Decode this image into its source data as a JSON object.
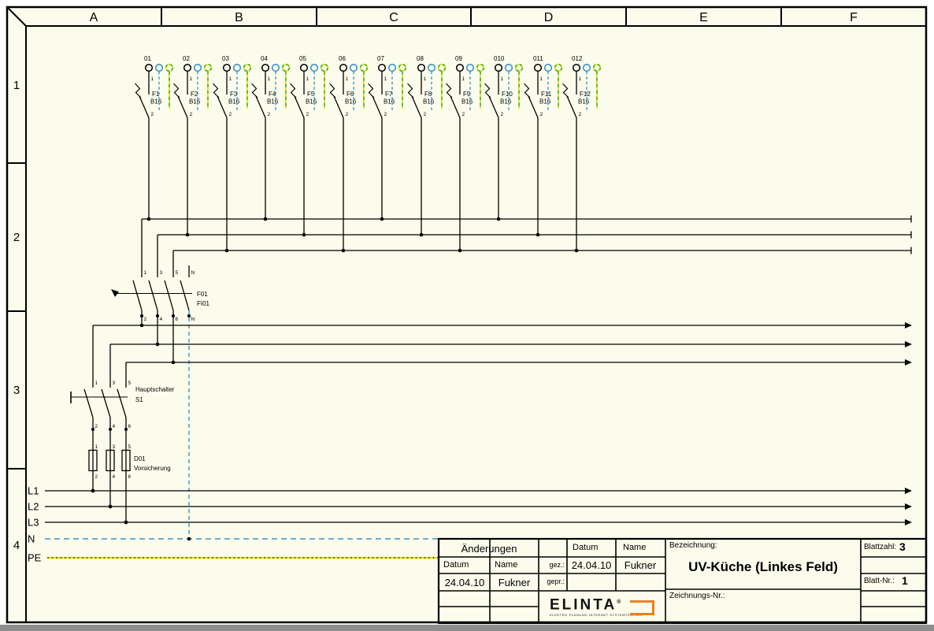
{
  "frame": {
    "columns": [
      "A",
      "B",
      "C",
      "D",
      "E",
      "F"
    ],
    "rows": [
      "1",
      "2",
      "3",
      "4"
    ]
  },
  "colors": {
    "paper": "#fcfcec",
    "line": "#000000",
    "neutral_blue": "#3895cc",
    "pe_yellow": "#e0e000",
    "pe_green": "#3cb02c",
    "logo_orange": "#e8821e"
  },
  "breakers": {
    "terminal_top": "1",
    "terminal_bottom": "2",
    "items": [
      {
        "circuit": "01",
        "device": "F1",
        "rating": "B16"
      },
      {
        "circuit": "02",
        "device": "F2",
        "rating": "B16"
      },
      {
        "circuit": "03",
        "device": "F3",
        "rating": "B16"
      },
      {
        "circuit": "04",
        "device": "F4",
        "rating": "B16"
      },
      {
        "circuit": "05",
        "device": "F5",
        "rating": "B16"
      },
      {
        "circuit": "06",
        "device": "F6",
        "rating": "B16"
      },
      {
        "circuit": "07",
        "device": "F7",
        "rating": "B16"
      },
      {
        "circuit": "08",
        "device": "F8",
        "rating": "B16"
      },
      {
        "circuit": "09",
        "device": "F9",
        "rating": "B16"
      },
      {
        "circuit": "010",
        "device": "F10",
        "rating": "B16"
      },
      {
        "circuit": "011",
        "device": "F11",
        "rating": "B16"
      },
      {
        "circuit": "012",
        "device": "F12",
        "rating": "B16"
      }
    ]
  },
  "rcd": {
    "device": "F01",
    "device_alt": "FI01",
    "top_terminals": [
      "1",
      "3",
      "5",
      "N"
    ],
    "bottom_terminals": [
      "2",
      "4",
      "6",
      "N"
    ]
  },
  "main_switch": {
    "label": "Hauptschalter",
    "device": "S1",
    "top_terminals": [
      "1",
      "3",
      "5"
    ],
    "bottom_terminals": [
      "2",
      "4",
      "6"
    ]
  },
  "supply_fuse": {
    "device": "D01",
    "label": "Vorsicherung",
    "top_terminals": [
      "1",
      "3",
      "5"
    ],
    "bottom_terminals": [
      "2",
      "4",
      "6"
    ]
  },
  "power_lines": [
    {
      "label": "L1",
      "type": "phase"
    },
    {
      "label": "L2",
      "type": "phase"
    },
    {
      "label": "L3",
      "type": "phase"
    },
    {
      "label": "N",
      "type": "neutral"
    },
    {
      "label": "PE",
      "type": "earth"
    }
  ],
  "title_block": {
    "aenderungen_label": "Änderungen",
    "datum_label": "Datum",
    "name_label": "Name",
    "change_date": "24.04.10",
    "change_name": "Fukner",
    "gez_label": "gez.:",
    "gepr_label": "gepr.:",
    "drawn_date": "24.04.10",
    "drawn_name": "Fukner",
    "bezeichnung_label": "Bezeichnung:",
    "bezeichnung_value": "UV-Küche (Linkes Feld)",
    "zeichnungs_nr_label": "Zeichnungs-Nr.:",
    "blattzahl_label": "Blattzahl:",
    "blattzahl_value": "3",
    "blatt_nr_label": "Blatt-Nr.:",
    "blatt_nr_value": "1",
    "logo_text": "ELINTA",
    "logo_mark": "®",
    "logo_tagline": "ELEKTRO PLANUNG INTERNET SYSTEMTECHNIK"
  }
}
